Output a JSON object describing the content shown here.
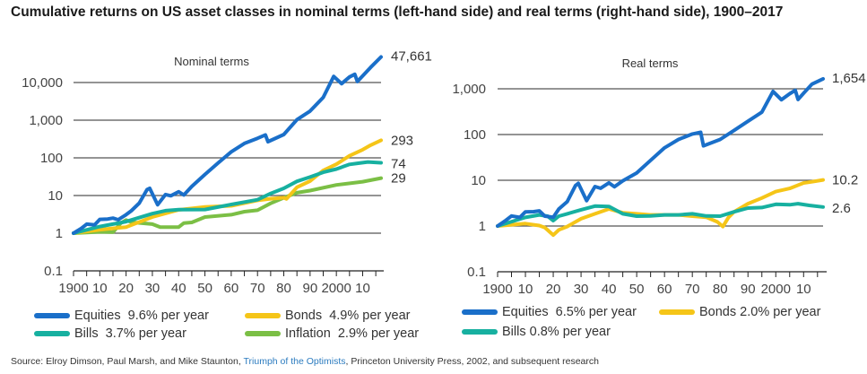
{
  "title": "Cumulative returns on US asset classes in nominal terms (left-hand side) and real terms (right-hand side), 1900–2017",
  "source": {
    "prefix": "Source: Elroy Dimson, Paul Marsh, and Mike Staunton, ",
    "link_text": "Triumph of the Optimists",
    "suffix": ", Princeton University Press, 2002, and subsequent research"
  },
  "colors": {
    "equities": "#1a6fc9",
    "bonds": "#f5c518",
    "bills": "#17b0a0",
    "inflation": "#7bbf45",
    "gridline": "#555555",
    "link": "#2b7bbf"
  },
  "chart_data": [
    {
      "type": "line",
      "title": "Nominal terms",
      "xlabel": "",
      "ylabel": "",
      "yscale": "log",
      "ylim": [
        0.1,
        100000
      ],
      "xlim": [
        1900,
        2017
      ],
      "y_ticks": [
        0.1,
        1,
        10,
        100,
        1000,
        10000
      ],
      "y_tick_labels": [
        "0.1",
        "1",
        "10",
        "100",
        "1,000",
        "10,000"
      ],
      "x_ticks": [
        1900,
        1910,
        1920,
        1930,
        1940,
        1950,
        1960,
        1970,
        1980,
        1990,
        2000,
        2010
      ],
      "x_tick_labels": [
        "1900",
        "10",
        "20",
        "30",
        "40",
        "50",
        "60",
        "70",
        "80",
        "90",
        "2000",
        "10"
      ],
      "grid": true,
      "legend": "bottom",
      "series": [
        {
          "key": "equities",
          "name": "Equities",
          "legend_rate": "9.6% per year",
          "end_label": "47,661",
          "x": [
            1900,
            1903,
            1905,
            1908,
            1910,
            1913,
            1915,
            1917,
            1920,
            1922,
            1925,
            1928,
            1929,
            1932,
            1935,
            1937,
            1940,
            1942,
            1945,
            1950,
            1955,
            1960,
            1965,
            1970,
            1973,
            1974,
            1980,
            1985,
            1990,
            1995,
            1999,
            2002,
            2005,
            2007,
            2008,
            2010,
            2013,
            2017
          ],
          "values": [
            1,
            1.3,
            1.8,
            1.6,
            2.4,
            2.3,
            2.6,
            2.2,
            3.2,
            3.8,
            6.5,
            14,
            16,
            5.5,
            11,
            9.5,
            13,
            10,
            18,
            35,
            75,
            140,
            250,
            320,
            420,
            260,
            430,
            1000,
            1800,
            3900,
            15000,
            9000,
            14500,
            16000,
            11000,
            14500,
            26000,
            47661
          ]
        },
        {
          "key": "bonds",
          "name": "Bonds",
          "legend_rate": "4.9% per year",
          "end_label": "293",
          "x": [
            1900,
            1910,
            1920,
            1930,
            1940,
            1950,
            1960,
            1970,
            1975,
            1980,
            1981,
            1985,
            1990,
            1995,
            2000,
            2005,
            2010,
            2013,
            2017
          ],
          "values": [
            1,
            1.2,
            1.5,
            2.6,
            4.3,
            4.8,
            5.5,
            7.2,
            8.5,
            8.5,
            8.4,
            16,
            25,
            45,
            70,
            110,
            170,
            210,
            293
          ]
        },
        {
          "key": "bills",
          "name": "Bills",
          "legend_rate": "3.7% per year",
          "end_label": "74",
          "x": [
            1900,
            1910,
            1920,
            1930,
            1935,
            1940,
            1950,
            1960,
            1970,
            1975,
            1980,
            1985,
            1990,
            1995,
            2000,
            2005,
            2008,
            2012,
            2017
          ],
          "values": [
            1,
            1.45,
            2.1,
            3.2,
            4.1,
            4.1,
            4.4,
            5.6,
            8,
            11,
            16,
            23,
            32,
            40,
            52,
            65,
            74,
            75,
            74
          ]
        },
        {
          "key": "inflation",
          "name": "Inflation",
          "legend_rate": "2.9% per year",
          "end_label": "29",
          "x": [
            1900,
            1910,
            1915,
            1918,
            1920,
            1922,
            1930,
            1933,
            1940,
            1942,
            1945,
            1950,
            1960,
            1965,
            1970,
            1975,
            1980,
            1985,
            1990,
            2000,
            2010,
            2017
          ],
          "values": [
            1,
            1.05,
            1.1,
            1.8,
            2.3,
            1.9,
            1.8,
            1.4,
            1.5,
            1.8,
            2.0,
            2.6,
            3.2,
            3.6,
            4.2,
            6,
            9,
            11.5,
            14,
            18.5,
            24,
            29
          ]
        }
      ]
    },
    {
      "type": "line",
      "title": "Real terms",
      "xlabel": "",
      "ylabel": "",
      "yscale": "log",
      "ylim": [
        0.1,
        3000
      ],
      "xlim": [
        1900,
        2017
      ],
      "y_ticks": [
        0.1,
        1,
        10,
        100,
        1000
      ],
      "y_tick_labels": [
        "0.1",
        "1",
        "10",
        "100",
        "1,000"
      ],
      "x_ticks": [
        1900,
        1910,
        1920,
        1930,
        1940,
        1950,
        1960,
        1970,
        1980,
        1990,
        2000,
        2010
      ],
      "x_tick_labels": [
        "1900",
        "10",
        "20",
        "30",
        "40",
        "50",
        "60",
        "70",
        "80",
        "90",
        "2000",
        "10"
      ],
      "grid": true,
      "legend": "bottom",
      "series": [
        {
          "key": "equities",
          "name": "Equities",
          "legend_rate": "6.5% per year",
          "end_label": "1,654",
          "x": [
            1900,
            1903,
            1905,
            1908,
            1910,
            1913,
            1915,
            1917,
            1920,
            1922,
            1925,
            1928,
            1929,
            1932,
            1935,
            1937,
            1940,
            1942,
            1945,
            1950,
            1955,
            1960,
            1965,
            1970,
            1973,
            1974,
            1980,
            1985,
            1990,
            1995,
            1999,
            2002,
            2005,
            2007,
            2008,
            2010,
            2013,
            2017
          ],
          "values": [
            1,
            1.3,
            1.7,
            1.5,
            2.1,
            2.0,
            2.2,
            1.6,
            1.6,
            2.3,
            3.5,
            7.5,
            8.8,
            3.5,
            7.5,
            6.5,
            9,
            7,
            10,
            14,
            28,
            50,
            80,
            100,
            115,
            55,
            80,
            120,
            200,
            300,
            900,
            560,
            800,
            900,
            600,
            780,
            1300,
            1654
          ]
        },
        {
          "key": "bonds",
          "name": "Bonds",
          "legend_rate": "2.0% per year",
          "end_label": "10.2",
          "x": [
            1900,
            1910,
            1915,
            1917,
            1920,
            1922,
            1925,
            1930,
            1935,
            1940,
            1945,
            1950,
            1955,
            1960,
            1965,
            1970,
            1975,
            1979,
            1981,
            1983,
            1985,
            1990,
            1995,
            2000,
            2005,
            2010,
            2013,
            2017
          ],
          "values": [
            1,
            1.1,
            1.05,
            0.9,
            0.65,
            0.8,
            1.0,
            1.4,
            1.9,
            2.3,
            2.0,
            1.8,
            1.8,
            1.7,
            1.8,
            1.6,
            1.6,
            1.2,
            1.0,
            1.5,
            2.1,
            3.0,
            4.2,
            5.5,
            6.8,
            8.5,
            9.5,
            10.2
          ]
        },
        {
          "key": "bills",
          "name": "Bills",
          "legend_rate": "0.8% per year",
          "end_label": "2.6",
          "x": [
            1900,
            1910,
            1915,
            1918,
            1920,
            1922,
            1925,
            1930,
            1935,
            1940,
            1945,
            1950,
            1955,
            1960,
            1965,
            1970,
            1975,
            1980,
            1985,
            1990,
            1995,
            2000,
            2005,
            2008,
            2012,
            2017
          ],
          "values": [
            1,
            1.5,
            1.8,
            1.6,
            1.35,
            1.6,
            1.9,
            2.2,
            2.8,
            2.6,
            1.9,
            1.6,
            1.7,
            1.7,
            1.8,
            1.8,
            1.7,
            1.6,
            2.1,
            2.4,
            2.6,
            2.9,
            3.0,
            3.0,
            2.9,
            2.6
          ]
        }
      ]
    }
  ]
}
